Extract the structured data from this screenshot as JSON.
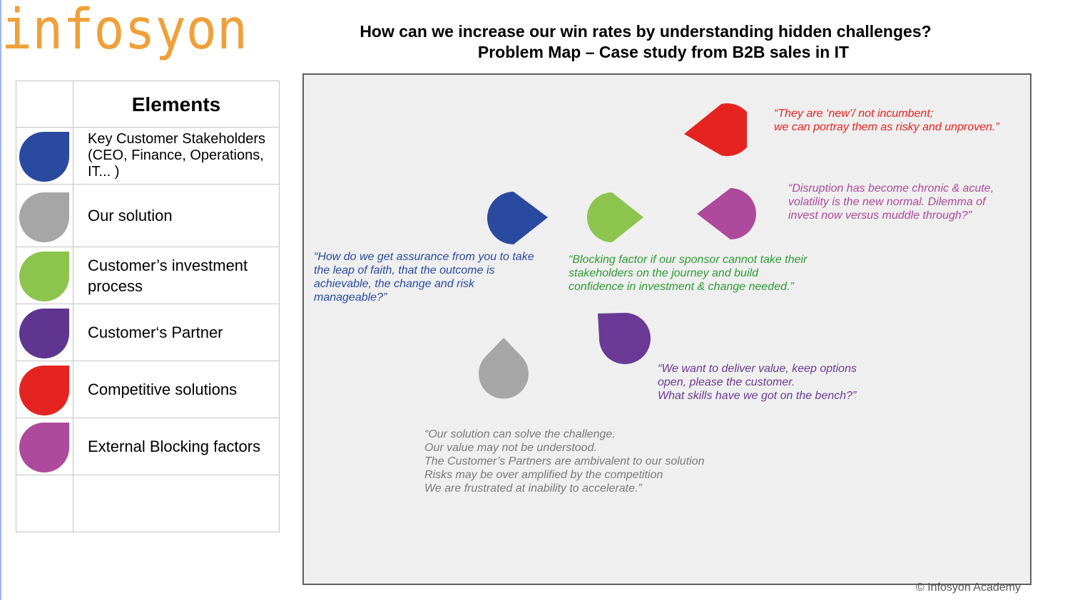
{
  "logo": {
    "text": "infosyon",
    "color": "#f0a03a"
  },
  "header": {
    "title_line1": "How  can we increase our win rates by understanding hidden  challenges?",
    "title_line2": "Problem Map – Case study from B2B sales in IT"
  },
  "legend": {
    "heading": "Elements",
    "items": [
      {
        "label": "Key Customer Stakeholders (CEO, Finance, Operations, IT... )",
        "color": "#2a4aa0",
        "icon": "blue-teardrop-icon"
      },
      {
        "label": "Our solution",
        "color": "#a6a6a6",
        "icon": "grey-teardrop-icon"
      },
      {
        "label": "Customer’s investment process",
        "color": "#8cc44e",
        "icon": "green-teardrop-icon"
      },
      {
        "label": "Customer‘s Partner",
        "color": "#5f3590",
        "icon": "purple-teardrop-icon"
      },
      {
        "label": "Competitive solutions",
        "color": "#e52421",
        "icon": "red-teardrop-icon"
      },
      {
        "label": "External Blocking factors",
        "color": "#ad4a9b",
        "icon": "magenta-teardrop-icon"
      }
    ]
  },
  "map": {
    "quotes": {
      "competitive": "“They are ‘new’/ not incumbent;\nwe can portray them as risky and unproven.”",
      "external": "“Disruption has become chronic & acute,\nvolatility is the new normal. Dilemma of\ninvest now versus muddle through?”",
      "stakeholders": "“How do we get assurance from you to take\nthe leap of faith, that the outcome is\nachievable, the change and risk\nmanageable?”",
      "investment": "“Blocking factor if our sponsor cannot take their\nstakeholders on the journey and build\nconfidence in investment & change needed.”",
      "partner": "“We want to deliver value, keep options\nopen, please the customer.\nWhat skills have we got on the bench?”",
      "solution": "“Our solution can solve the challenge.\nOur value may not be understood.\nThe Customer’s Partners are ambivalent to our solution\nRisks may be over amplified by the competition\nWe are frustrated at inability to accelerate.”"
    }
  },
  "copyright": "© Infosyon Academy"
}
